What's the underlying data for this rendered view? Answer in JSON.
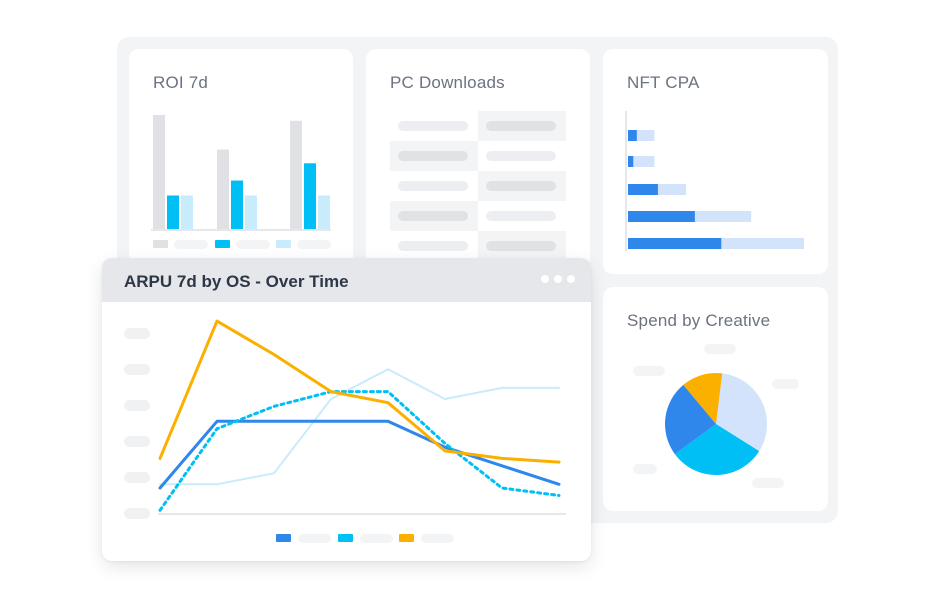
{
  "cards": {
    "roi": {
      "title": "ROI 7d"
    },
    "pc_downloads": {
      "title": "PC Downloads"
    },
    "nft_cpa": {
      "title": "NFT CPA"
    },
    "spend": {
      "title": "Spend by Creative"
    },
    "arpu": {
      "title": "ARPU 7d by OS - Over Time"
    }
  },
  "colors": {
    "blue": "#2f86eb",
    "cyan": "#00bff5",
    "light_blue": "#c8ecfb",
    "gray_bar": "#dfe1e5",
    "orange": "#fbb000",
    "pale_blue": "#d2e3fb"
  },
  "icons": {
    "menu": "more-dots-icon"
  },
  "chart_data": [
    {
      "type": "bar",
      "title": "ROI 7d",
      "categories": [
        "",
        "",
        ""
      ],
      "series": [
        {
          "values": [
            100,
            70,
            95
          ]
        },
        {
          "values": [
            30,
            43,
            58
          ]
        },
        {
          "values": [
            30,
            30,
            30
          ]
        }
      ],
      "ylim": [
        0,
        100
      ]
    },
    {
      "type": "table",
      "title": "PC Downloads",
      "rows": 5
    },
    {
      "type": "bar",
      "orientation": "horizontal",
      "title": "NFT CPA",
      "series": [
        {
          "values": [
            5,
            3,
            17,
            38,
            53
          ]
        },
        {
          "values": [
            15,
            15,
            33,
            70,
            100
          ]
        }
      ],
      "xlim": [
        0,
        100
      ]
    },
    {
      "type": "pie",
      "title": "Spend by Creative",
      "values": [
        32,
        31,
        24,
        13
      ],
      "colors": [
        "#d2e3fb",
        "#00bff5",
        "#2f86eb",
        "#fbb000"
      ]
    },
    {
      "type": "line",
      "title": "ARPU 7d by OS - Over Time",
      "x": [
        0,
        1,
        2,
        3,
        4,
        5,
        6,
        7
      ],
      "series": [
        {
          "values": [
            7,
            25,
            25,
            25,
            25,
            18,
            13,
            8
          ]
        },
        {
          "values": [
            1,
            23,
            29,
            33,
            33,
            19,
            7,
            5
          ]
        },
        {
          "values": [
            8,
            8,
            11,
            31,
            39,
            31,
            34,
            34
          ]
        },
        {
          "values": [
            15,
            52,
            43,
            33,
            30,
            17,
            15,
            14
          ]
        }
      ],
      "ylim": [
        0,
        55
      ]
    }
  ]
}
